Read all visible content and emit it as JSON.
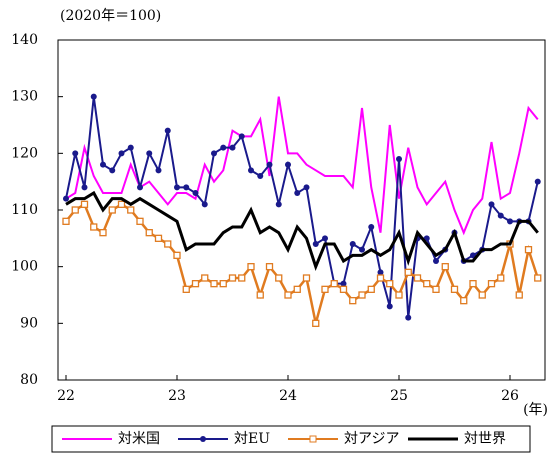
{
  "chart_data": {
    "type": "line",
    "y_label": "(2020年＝100)",
    "x_label": "(年)",
    "categories": [
      "22",
      null,
      null,
      null,
      null,
      null,
      null,
      null,
      null,
      null,
      null,
      null,
      "23",
      null,
      null,
      null,
      null,
      null,
      null,
      null,
      null,
      null,
      null,
      null,
      "24",
      null,
      null,
      null,
      null,
      null,
      null,
      null,
      null,
      null,
      null,
      null,
      "25",
      null,
      null,
      null,
      null,
      null,
      null,
      null,
      null,
      null,
      null,
      null,
      "26",
      null,
      null,
      null
    ],
    "ylim": [
      80,
      140
    ],
    "yticks": [
      80,
      90,
      100,
      110,
      120,
      130,
      140
    ],
    "grid": false,
    "legend": "bottom",
    "series": [
      {
        "name": "対米国",
        "color": "#ff00ff",
        "marker": null,
        "values": [
          112,
          113,
          121,
          116,
          113,
          113,
          113,
          118,
          114,
          115,
          113,
          111,
          113,
          113,
          112,
          118,
          115,
          117,
          124,
          123,
          123,
          126,
          116,
          130,
          120,
          120,
          118,
          117,
          116,
          116,
          116,
          114,
          128,
          114,
          106,
          125,
          112,
          121,
          114,
          111,
          113,
          115,
          110,
          106,
          110,
          112,
          122,
          112,
          113,
          120,
          128,
          126
        ]
      },
      {
        "name": "対EU",
        "color": "#1a1a8c",
        "marker": "circle",
        "values": [
          112,
          120,
          114,
          130,
          118,
          117,
          120,
          121,
          114,
          120,
          117,
          124,
          114,
          114,
          113,
          111,
          120,
          121,
          121,
          123,
          117,
          116,
          118,
          111,
          118,
          113,
          114,
          104,
          105,
          97,
          97,
          104,
          103,
          107,
          99,
          93,
          119,
          91,
          105,
          105,
          101,
          103,
          106,
          101,
          102,
          103,
          111,
          109,
          108,
          108,
          108,
          115
        ]
      },
      {
        "name": "対アジア",
        "color": "#e07b20",
        "marker": "square",
        "values": [
          108,
          110,
          111,
          107,
          106,
          110,
          111,
          110,
          108,
          106,
          105,
          104,
          102,
          96,
          97,
          98,
          97,
          97,
          98,
          98,
          100,
          95,
          100,
          98,
          95,
          96,
          98,
          90,
          96,
          97,
          96,
          94,
          95,
          96,
          98,
          97,
          95,
          99,
          98,
          97,
          96,
          100,
          96,
          94,
          97,
          95,
          97,
          98,
          104,
          95,
          103,
          98
        ]
      },
      {
        "name": "対世界",
        "color": "#000000",
        "marker": null,
        "values": [
          111,
          112,
          112,
          113,
          110,
          112,
          112,
          111,
          112,
          111,
          110,
          109,
          108,
          103,
          104,
          104,
          104,
          106,
          107,
          107,
          110,
          106,
          107,
          106,
          103,
          107,
          105,
          100,
          104,
          104,
          101,
          102,
          102,
          103,
          102,
          103,
          106,
          101,
          106,
          104,
          102,
          103,
          106,
          101,
          101,
          103,
          103,
          104,
          104,
          108,
          108,
          106
        ]
      }
    ]
  }
}
